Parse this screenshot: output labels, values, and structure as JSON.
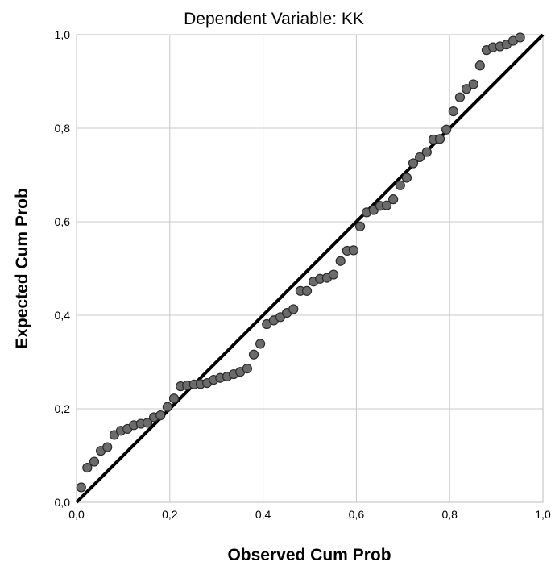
{
  "chart_data": {
    "type": "scatter",
    "title": "Dependent Variable: KK",
    "xlabel": "Observed Cum Prob",
    "ylabel": "Expected Cum Prob",
    "xlim": [
      0,
      1
    ],
    "ylim": [
      0,
      1
    ],
    "x_ticks": [
      "0,0",
      "0,2",
      "0,4",
      "0,6",
      "0,8",
      "1,0"
    ],
    "y_ticks": [
      "0,0",
      "0,2",
      "0,4",
      "0,6",
      "0,8",
      "1,0"
    ],
    "grid": true,
    "reference_line": {
      "from": [
        0,
        0
      ],
      "to": [
        1,
        1
      ]
    },
    "colors": {
      "points": "#6b6b6b",
      "point_stroke": "#2a2a2a",
      "line": "#000000",
      "grid": "#c8c8c8"
    },
    "points": [
      [
        0.01,
        0.032
      ],
      [
        0.023,
        0.074
      ],
      [
        0.038,
        0.087
      ],
      [
        0.052,
        0.11
      ],
      [
        0.066,
        0.118
      ],
      [
        0.081,
        0.144
      ],
      [
        0.095,
        0.153
      ],
      [
        0.109,
        0.157
      ],
      [
        0.123,
        0.165
      ],
      [
        0.138,
        0.168
      ],
      [
        0.152,
        0.17
      ],
      [
        0.166,
        0.182
      ],
      [
        0.18,
        0.186
      ],
      [
        0.195,
        0.204
      ],
      [
        0.209,
        0.222
      ],
      [
        0.223,
        0.248
      ],
      [
        0.237,
        0.25
      ],
      [
        0.252,
        0.252
      ],
      [
        0.266,
        0.253
      ],
      [
        0.28,
        0.255
      ],
      [
        0.294,
        0.262
      ],
      [
        0.308,
        0.266
      ],
      [
        0.323,
        0.269
      ],
      [
        0.337,
        0.274
      ],
      [
        0.351,
        0.279
      ],
      [
        0.366,
        0.286
      ],
      [
        0.38,
        0.316
      ],
      [
        0.394,
        0.339
      ],
      [
        0.408,
        0.381
      ],
      [
        0.423,
        0.389
      ],
      [
        0.437,
        0.396
      ],
      [
        0.451,
        0.405
      ],
      [
        0.465,
        0.413
      ],
      [
        0.48,
        0.452
      ],
      [
        0.494,
        0.452
      ],
      [
        0.508,
        0.472
      ],
      [
        0.522,
        0.478
      ],
      [
        0.537,
        0.48
      ],
      [
        0.551,
        0.487
      ],
      [
        0.566,
        0.516
      ],
      [
        0.58,
        0.538
      ],
      [
        0.594,
        0.539
      ],
      [
        0.608,
        0.59
      ],
      [
        0.622,
        0.62
      ],
      [
        0.637,
        0.625
      ],
      [
        0.651,
        0.634
      ],
      [
        0.665,
        0.635
      ],
      [
        0.679,
        0.648
      ],
      [
        0.694,
        0.678
      ],
      [
        0.708,
        0.694
      ],
      [
        0.722,
        0.725
      ],
      [
        0.736,
        0.738
      ],
      [
        0.751,
        0.749
      ],
      [
        0.765,
        0.776
      ],
      [
        0.779,
        0.777
      ],
      [
        0.793,
        0.797
      ],
      [
        0.808,
        0.836
      ],
      [
        0.822,
        0.866
      ],
      [
        0.836,
        0.884
      ],
      [
        0.851,
        0.894
      ],
      [
        0.865,
        0.934
      ],
      [
        0.879,
        0.967
      ],
      [
        0.893,
        0.973
      ],
      [
        0.908,
        0.975
      ],
      [
        0.922,
        0.979
      ],
      [
        0.936,
        0.987
      ],
      [
        0.951,
        0.994
      ]
    ]
  }
}
